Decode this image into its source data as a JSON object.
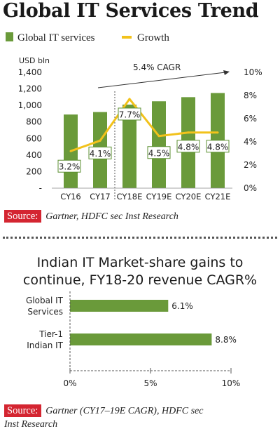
{
  "header": {
    "title": "Global IT Services Trend"
  },
  "legend": {
    "bar_label": "Global IT services",
    "line_label": "Growth",
    "bar_color": "#6a9a3a",
    "line_color": "#f2c21b"
  },
  "chart_data": [
    {
      "type": "bar",
      "title": "Global IT Services Trend",
      "ylabel": "USD bln",
      "ylim": [
        0,
        1400
      ],
      "yticks": [
        "-",
        "200",
        "400",
        "600",
        "800",
        "1,000",
        "1,200",
        "1,400"
      ],
      "y2lim": [
        0,
        10
      ],
      "y2ticks": [
        "0%",
        "2%",
        "4%",
        "6%",
        "8%",
        "10%"
      ],
      "categories": [
        "CY16",
        "CY17",
        "CY18E",
        "CY19E",
        "CY20E",
        "CY21E"
      ],
      "series": [
        {
          "name": "Global IT services",
          "type": "bar",
          "axis": "left",
          "values": [
            890,
            920,
            1010,
            1050,
            1100,
            1150
          ]
        },
        {
          "name": "Growth",
          "type": "line",
          "axis": "right",
          "values": [
            3.2,
            4.1,
            7.7,
            4.5,
            4.8,
            4.8
          ]
        }
      ],
      "data_labels": [
        "3.2%",
        "4.1%",
        "7.7%",
        "4.5%",
        "4.8%",
        "4.8%"
      ],
      "annotation": "5.4% CAGR",
      "grid": false,
      "legend_position": "top-left"
    },
    {
      "type": "bar",
      "orientation": "horizontal",
      "title": "Indian IT Market-share gains to continue, FY18-20 revenue CAGR%",
      "categories": [
        "Global IT Services",
        "Tier-1 Indian IT"
      ],
      "category_lines": [
        [
          "Global IT",
          "Services"
        ],
        [
          "Tier-1",
          "Indian IT"
        ]
      ],
      "values": [
        6.1,
        8.8
      ],
      "data_labels": [
        "6.1%",
        "8.8%"
      ],
      "xlim": [
        0,
        10
      ],
      "xticks": [
        "0%",
        "5%",
        "10%"
      ],
      "grid": false
    }
  ],
  "sources": {
    "tag": "Source:",
    "source1_text": "Gartner, HDFC sec Inst Research",
    "source2_line1": "Gartner (CY17–19E CAGR), HDFC sec",
    "source2_line2": "Inst Research"
  },
  "subheader": {
    "line1": "Indian IT Market-share gains to",
    "line2": "continue, FY18-20 revenue CAGR%"
  }
}
